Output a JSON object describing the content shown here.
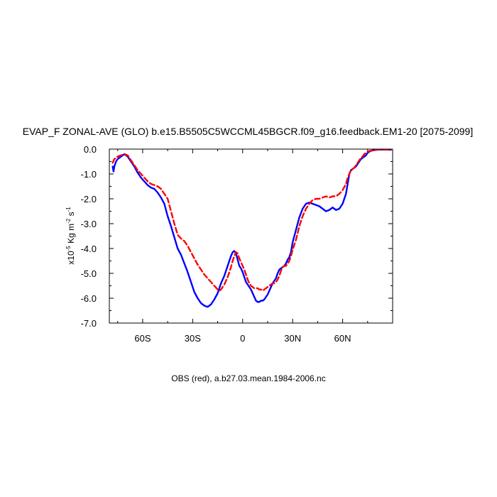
{
  "chart_data": {
    "type": "line",
    "title": "EVAP_F ZONAL-AVE (GLO) b.e15.B5505C5WCCML45BGCR.f09_g16.feedback.EM1-20 [2075-2099]",
    "ylabel": "x10^-5 Kg m^-2 s^-1",
    "ylabel_parts": {
      "scale": "x10",
      "scale_exp": "-5",
      "unit1": " Kg m",
      "unit1_exp": "-2",
      "unit2": " s",
      "unit2_exp": "-1"
    },
    "footer": "OBS (red), a.b27.03.mean.1984-2006.nc",
    "xlim": [
      -80,
      90
    ],
    "ylim": [
      -7.0,
      0.0
    ],
    "x_ticks": [
      {
        "value": -60,
        "label": "60S"
      },
      {
        "value": -30,
        "label": "30S"
      },
      {
        "value": 0,
        "label": "0"
      },
      {
        "value": 30,
        "label": "30N"
      },
      {
        "value": 60,
        "label": "60N"
      }
    ],
    "y_ticks": [
      {
        "value": 0.0,
        "label": "0.0"
      },
      {
        "value": -1.0,
        "label": "-1.0"
      },
      {
        "value": -2.0,
        "label": "-2.0"
      },
      {
        "value": -3.0,
        "label": "-3.0"
      },
      {
        "value": -4.0,
        "label": "-4.0"
      },
      {
        "value": -5.0,
        "label": "-5.0"
      },
      {
        "value": -6.0,
        "label": "-6.0"
      },
      {
        "value": -7.0,
        "label": "-7.0"
      }
    ],
    "series": [
      {
        "color": "#0000ff",
        "dash": "solid",
        "x": [
          -78,
          -77.5,
          -77,
          -76,
          -75,
          -73,
          -71,
          -69,
          -67,
          -65,
          -63,
          -61,
          -59,
          -57,
          -55,
          -53,
          -51,
          -49,
          -47,
          -45,
          -43,
          -41,
          -39,
          -37,
          -35,
          -33,
          -31,
          -29,
          -27,
          -25,
          -23,
          -21,
          -19,
          -17,
          -15,
          -14,
          -13,
          -12,
          -11,
          -10,
          -9,
          -8,
          -7,
          -6,
          -5,
          -4,
          -3,
          -2,
          -1,
          0,
          1,
          2,
          3,
          4,
          5,
          6,
          7,
          8,
          9,
          10,
          11,
          12,
          13,
          14,
          15,
          16,
          17,
          18,
          19,
          20,
          21,
          22,
          23,
          24,
          25,
          26,
          27,
          28,
          29,
          30,
          32,
          34,
          36,
          38,
          40,
          42,
          44,
          46,
          48,
          50,
          52,
          54,
          56,
          58,
          60,
          62,
          63,
          64,
          65,
          66,
          67,
          68,
          69,
          70,
          71,
          72,
          73,
          74,
          75,
          76,
          78,
          80,
          82,
          84,
          86,
          88,
          89
        ],
        "y": [
          -0.7,
          -0.9,
          -0.7,
          -0.5,
          -0.4,
          -0.3,
          -0.2,
          -0.3,
          -0.5,
          -0.7,
          -0.95,
          -1.15,
          -1.3,
          -1.45,
          -1.55,
          -1.6,
          -1.75,
          -1.95,
          -2.2,
          -2.7,
          -3.1,
          -3.55,
          -4.0,
          -4.25,
          -4.6,
          -4.95,
          -5.35,
          -5.75,
          -6.0,
          -6.2,
          -6.3,
          -6.35,
          -6.25,
          -6.05,
          -5.8,
          -5.6,
          -5.4,
          -5.25,
          -5.1,
          -4.9,
          -4.7,
          -4.5,
          -4.3,
          -4.15,
          -4.1,
          -4.2,
          -4.45,
          -4.7,
          -4.8,
          -4.95,
          -5.15,
          -5.35,
          -5.45,
          -5.55,
          -5.65,
          -5.8,
          -5.95,
          -6.1,
          -6.15,
          -6.15,
          -6.1,
          -6.1,
          -6.05,
          -5.95,
          -5.85,
          -5.7,
          -5.55,
          -5.4,
          -5.3,
          -5.2,
          -5.0,
          -4.85,
          -4.8,
          -4.75,
          -4.7,
          -4.6,
          -4.45,
          -4.35,
          -4.15,
          -3.75,
          -3.25,
          -2.75,
          -2.4,
          -2.2,
          -2.15,
          -2.2,
          -2.25,
          -2.3,
          -2.4,
          -2.5,
          -2.45,
          -2.35,
          -2.45,
          -2.4,
          -2.2,
          -1.8,
          -1.4,
          -1.0,
          -0.85,
          -0.8,
          -0.75,
          -0.7,
          -0.6,
          -0.5,
          -0.4,
          -0.35,
          -0.3,
          -0.25,
          -0.15,
          -0.1,
          -0.05,
          -0.03,
          -0.02,
          -0.02,
          -0.02,
          -0.02,
          -0.03
        ]
      },
      {
        "color": "#ff0000",
        "dash": "dashed",
        "x": [
          -78,
          -77,
          -76,
          -75,
          -73,
          -71,
          -69,
          -67,
          -65,
          -63,
          -61,
          -59,
          -57,
          -55,
          -53,
          -51,
          -49,
          -47,
          -45,
          -43,
          -41,
          -39,
          -37,
          -35,
          -33,
          -31,
          -29,
          -27,
          -25,
          -23,
          -21,
          -19,
          -17,
          -15,
          -14,
          -13,
          -12,
          -11,
          -10,
          -9,
          -8,
          -7,
          -6,
          -5,
          -4,
          -3,
          -2,
          -1,
          0,
          1,
          2,
          3,
          4,
          5,
          6,
          7,
          8,
          9,
          10,
          11,
          12,
          13,
          14,
          15,
          16,
          17,
          18,
          19,
          20,
          21,
          22,
          23,
          24,
          25,
          26,
          27,
          28,
          29,
          30,
          32,
          34,
          36,
          38,
          40,
          42,
          44,
          46,
          48,
          50,
          52,
          54,
          56,
          58,
          60,
          62,
          63,
          64,
          65,
          66,
          67,
          68,
          69,
          70,
          71,
          72,
          73,
          74,
          75,
          76,
          78,
          80,
          82,
          84,
          86,
          88,
          89
        ],
        "y": [
          -0.55,
          -0.4,
          -0.35,
          -0.3,
          -0.25,
          -0.2,
          -0.25,
          -0.45,
          -0.65,
          -0.85,
          -1.0,
          -1.15,
          -1.3,
          -1.4,
          -1.45,
          -1.5,
          -1.6,
          -1.8,
          -2.0,
          -2.5,
          -3.0,
          -3.45,
          -3.6,
          -3.7,
          -3.9,
          -4.15,
          -4.4,
          -4.65,
          -4.85,
          -5.05,
          -5.2,
          -5.35,
          -5.5,
          -5.65,
          -5.7,
          -5.65,
          -5.55,
          -5.45,
          -5.3,
          -5.15,
          -4.95,
          -4.75,
          -4.5,
          -4.3,
          -4.15,
          -4.2,
          -4.4,
          -4.55,
          -4.7,
          -4.85,
          -5.05,
          -5.25,
          -5.4,
          -5.5,
          -5.55,
          -5.6,
          -5.6,
          -5.6,
          -5.65,
          -5.65,
          -5.7,
          -5.65,
          -5.6,
          -5.55,
          -5.5,
          -5.45,
          -5.4,
          -5.4,
          -5.35,
          -5.25,
          -5.1,
          -4.9,
          -4.75,
          -4.7,
          -4.7,
          -4.6,
          -4.5,
          -4.3,
          -4.05,
          -3.65,
          -3.1,
          -2.7,
          -2.4,
          -2.2,
          -2.05,
          -2.0,
          -2.0,
          -1.95,
          -1.9,
          -1.95,
          -1.9,
          -1.9,
          -1.8,
          -1.65,
          -1.4,
          -1.15,
          -1.0,
          -0.85,
          -0.8,
          -0.75,
          -0.65,
          -0.55,
          -0.45,
          -0.35,
          -0.3,
          -0.2,
          -0.15,
          -0.1,
          -0.08,
          -0.05,
          -0.03,
          -0.02,
          -0.02,
          -0.02,
          -0.02,
          -0.02
        ]
      }
    ]
  }
}
